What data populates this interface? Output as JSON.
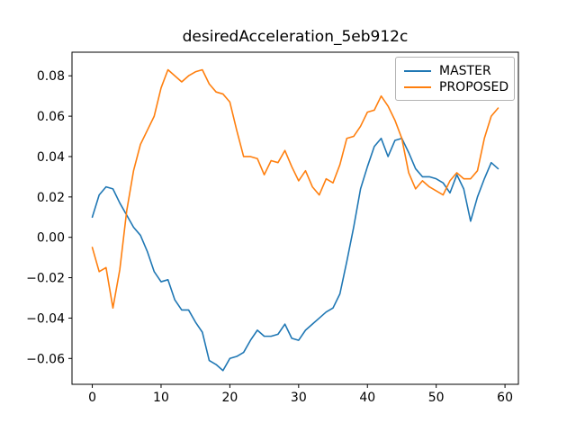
{
  "title": "desiredAcceleration_5eb912c",
  "colors": {
    "master": "#1f77b4",
    "proposed": "#ff7f0e",
    "axis": "#000000",
    "legend_border": "#b3b3b3",
    "background": "#ffffff"
  },
  "legend": {
    "position": "upper right",
    "entries": [
      {
        "label": "MASTER",
        "color": "#1f77b4"
      },
      {
        "label": "PROPOSED",
        "color": "#ff7f0e"
      }
    ]
  },
  "chart_data": {
    "type": "line",
    "title": "desiredAcceleration_5eb912c",
    "xlabel": "",
    "ylabel": "",
    "grid": false,
    "legend_position": "upper right",
    "xlim": [
      -2.95,
      61.95
    ],
    "ylim": [
      -0.0728,
      0.0917
    ],
    "xticks": [
      0,
      10,
      20,
      30,
      40,
      50,
      60
    ],
    "xtick_labels": [
      "0",
      "10",
      "20",
      "30",
      "40",
      "50",
      "60"
    ],
    "yticks": [
      -0.06,
      -0.04,
      -0.02,
      0.0,
      0.02,
      0.04,
      0.06,
      0.08
    ],
    "ytick_labels": [
      "−0.06",
      "−0.04",
      "−0.02",
      "0.00",
      "0.02",
      "0.04",
      "0.06",
      "0.08"
    ],
    "x": [
      0,
      1,
      2,
      3,
      4,
      5,
      6,
      7,
      8,
      9,
      10,
      11,
      12,
      13,
      14,
      15,
      16,
      17,
      18,
      19,
      20,
      21,
      22,
      23,
      24,
      25,
      26,
      27,
      28,
      29,
      30,
      31,
      32,
      33,
      34,
      35,
      36,
      37,
      38,
      39,
      40,
      41,
      42,
      43,
      44,
      45,
      46,
      47,
      48,
      49,
      50,
      51,
      52,
      53,
      54,
      55,
      56,
      57,
      58,
      59
    ],
    "series": [
      {
        "name": "MASTER",
        "color": "#1f77b4",
        "values": [
          0.01,
          0.021,
          0.025,
          0.024,
          0.017,
          0.011,
          0.005,
          0.001,
          -0.007,
          -0.017,
          -0.022,
          -0.021,
          -0.031,
          -0.036,
          -0.036,
          -0.042,
          -0.047,
          -0.061,
          -0.063,
          -0.066,
          -0.06,
          -0.059,
          -0.057,
          -0.051,
          -0.046,
          -0.049,
          -0.049,
          -0.048,
          -0.043,
          -0.05,
          -0.051,
          -0.046,
          -0.043,
          -0.04,
          -0.037,
          -0.035,
          -0.028,
          -0.012,
          0.005,
          0.024,
          0.035,
          0.045,
          0.049,
          0.04,
          0.048,
          0.049,
          0.042,
          0.034,
          0.03,
          0.03,
          0.029,
          0.027,
          0.022,
          0.031,
          0.024,
          0.008,
          0.02,
          0.029,
          0.037,
          0.034
        ]
      },
      {
        "name": "PROPOSED",
        "color": "#ff7f0e",
        "values": [
          -0.005,
          -0.017,
          -0.015,
          -0.035,
          -0.016,
          0.013,
          0.033,
          0.046,
          0.053,
          0.06,
          0.074,
          0.083,
          0.08,
          0.077,
          0.08,
          0.082,
          0.083,
          0.076,
          0.072,
          0.071,
          0.067,
          0.053,
          0.04,
          0.04,
          0.039,
          0.031,
          0.038,
          0.037,
          0.043,
          0.035,
          0.028,
          0.033,
          0.025,
          0.021,
          0.029,
          0.027,
          0.036,
          0.049,
          0.05,
          0.055,
          0.062,
          0.063,
          0.07,
          0.065,
          0.058,
          0.049,
          0.032,
          0.024,
          0.028,
          0.025,
          0.023,
          0.021,
          0.028,
          0.032,
          0.029,
          0.029,
          0.033,
          0.049,
          0.06,
          0.064
        ]
      }
    ]
  }
}
